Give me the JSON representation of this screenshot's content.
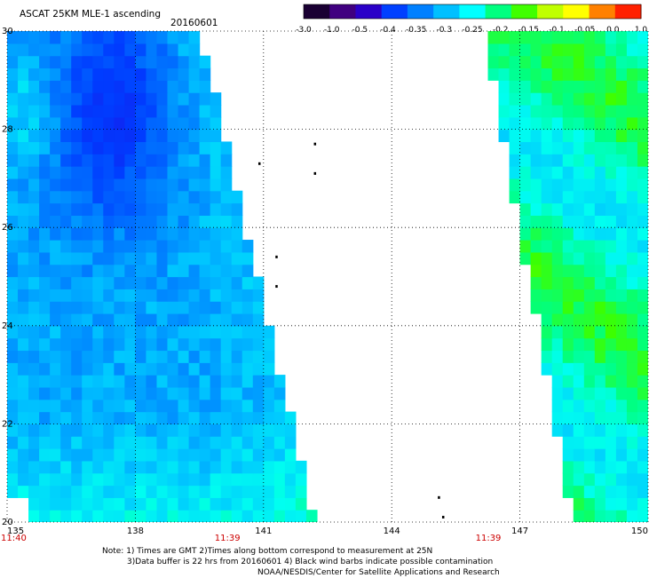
{
  "header": {
    "title": "ASCAT 25KM MLE-1 ascending",
    "date": "20160601"
  },
  "colorbar": {
    "tick_labels": [
      "-3.0",
      "-1.0",
      "-0.5",
      "-0.4",
      "-0.35",
      "-0.3",
      "-0.25",
      "-0.2",
      "-0.15",
      "-0.1",
      "-0.05",
      "0.0",
      "1.0"
    ],
    "colors": [
      "#1a0033",
      "#400080",
      "#2a00c8",
      "#0040ff",
      "#0080ff",
      "#00c0ff",
      "#00ffff",
      "#00ff80",
      "#40ff00",
      "#c0ff00",
      "#ffff00",
      "#ff8000",
      "#ff2000"
    ]
  },
  "chart_data": {
    "type": "heatmap",
    "variable": "MLE-1",
    "xlim": [
      135,
      150
    ],
    "ylim": [
      20,
      30
    ],
    "x_ticks": [
      135,
      138,
      141,
      144,
      147,
      150
    ],
    "x_tick_labels": [
      "135",
      "138",
      "141",
      "144",
      "147",
      "150"
    ],
    "y_ticks": [
      20,
      22,
      24,
      26,
      28,
      30
    ],
    "y_tick_labels": [
      "20",
      "22",
      "24",
      "26",
      "28",
      "30"
    ],
    "grid": true,
    "time_labels": [
      {
        "lon": 135,
        "text": "11:40"
      },
      {
        "lon": 141,
        "text": "11:39"
      },
      {
        "lon": 147,
        "text": "11:39"
      }
    ],
    "swaths": [
      {
        "name": "west",
        "lon_west_edge": 135.0,
        "lon_east_edge_top": 139.6,
        "lon_east_edge_bottom": 142.3,
        "typical_value": -0.32
      },
      {
        "name": "east",
        "lon_west_edge_top": 146.0,
        "lon_west_edge_bottom": 148.1,
        "lon_east_edge": 150.0,
        "typical_value": -0.22
      }
    ],
    "islands": [
      {
        "lon": 142.2,
        "lat": 27.7
      },
      {
        "lon": 142.2,
        "lat": 27.1
      },
      {
        "lon": 140.9,
        "lat": 27.3
      },
      {
        "lon": 141.3,
        "lat": 25.4
      },
      {
        "lon": 141.3,
        "lat": 24.8
      },
      {
        "lon": 145.1,
        "lat": 20.5
      },
      {
        "lon": 145.2,
        "lat": 20.1
      }
    ]
  },
  "footer": {
    "line1": "Note: 1) Times are GMT 2)Times along bottom correspond to measurement at 25N",
    "line2": "3)Data buffer is 22 hrs from 20160601 4) Black wind barbs indicate possible contamination",
    "line3": "NOAA/NESDIS/Center for Satellite Applications and Research"
  },
  "colors": {
    "time_label": "#cc0000",
    "grid": "#000000",
    "axis_label": "#000000"
  }
}
